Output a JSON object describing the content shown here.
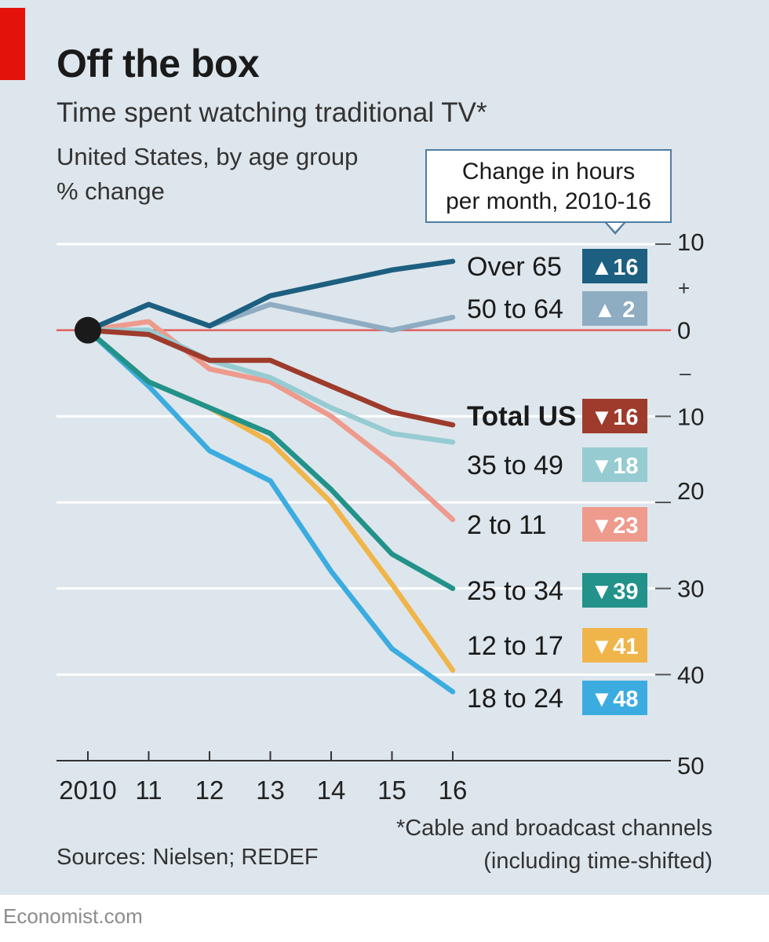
{
  "header": {
    "title": "Off the box",
    "subtitle": "Time spent watching traditional TV*",
    "sub_lines": [
      "United States, by age group",
      "% change"
    ],
    "accent_color": "#e3120b"
  },
  "callout": {
    "lines": [
      "Change in hours",
      "per month, 2010-16"
    ]
  },
  "footer": {
    "source": "Sources: Nielsen; REDEF",
    "footnote_lines": [
      "*Cable and broadcast channels",
      "(including time-shifted)"
    ],
    "brand": "Economist.com"
  },
  "chart_data": {
    "type": "line",
    "title": "Off the box",
    "subtitle": "Time spent watching traditional TV*",
    "x": [
      "2010",
      "11",
      "12",
      "13",
      "14",
      "15",
      "16"
    ],
    "ylim": [
      -50,
      10
    ],
    "y_ticks": [
      {
        "value": 10,
        "label": "10"
      },
      {
        "value": 0,
        "label": "0"
      },
      {
        "value": -10,
        "label": "10"
      },
      {
        "value": -20,
        "label": "20"
      },
      {
        "value": -30,
        "label": "30"
      },
      {
        "value": -40,
        "label": "40"
      },
      {
        "value": -50,
        "label": "50"
      }
    ],
    "sign_labels": {
      "plus": "+",
      "minus": "–"
    },
    "grid": true,
    "zero_line_color": "#e06060",
    "series": [
      {
        "name": "18 to 24",
        "change": "▼48",
        "color": "#3cace0",
        "values": [
          0,
          -6.5,
          -14,
          -17.5,
          -28,
          -37,
          -42
        ]
      },
      {
        "name": "12 to 17",
        "change": "▼41",
        "color": "#f0b54a",
        "values": [
          0,
          -6,
          -9,
          -13,
          -20,
          -29.5,
          -39.5
        ]
      },
      {
        "name": "25 to 34",
        "change": "▼39",
        "color": "#22928a",
        "values": [
          0,
          -6,
          -9,
          -12,
          -18.5,
          -26,
          -30
        ]
      },
      {
        "name": "2 to 11",
        "change": "▼23",
        "color": "#ee9a8d",
        "values": [
          0,
          1,
          -4.5,
          -6,
          -10,
          -15.5,
          -22
        ]
      },
      {
        "name": "35 to 49",
        "change": "▼18",
        "color": "#96cbd2",
        "values": [
          0,
          0,
          -3.5,
          -5.5,
          -9,
          -12,
          -13
        ]
      },
      {
        "name": "Total US",
        "change": "▼16",
        "color": "#9e3b2c",
        "values": [
          0,
          -0.5,
          -3.5,
          -3.5,
          -6.5,
          -9.5,
          -11
        ]
      },
      {
        "name": "50 to 64",
        "change": "▲ 2",
        "color": "#8eacc2",
        "values": [
          0,
          3,
          0.5,
          3,
          1.5,
          0,
          1.5
        ]
      },
      {
        "name": "Over 65",
        "change": "▲16",
        "color": "#1c5f80",
        "values": [
          0,
          3,
          0.5,
          4,
          5.5,
          7,
          8
        ]
      }
    ]
  }
}
